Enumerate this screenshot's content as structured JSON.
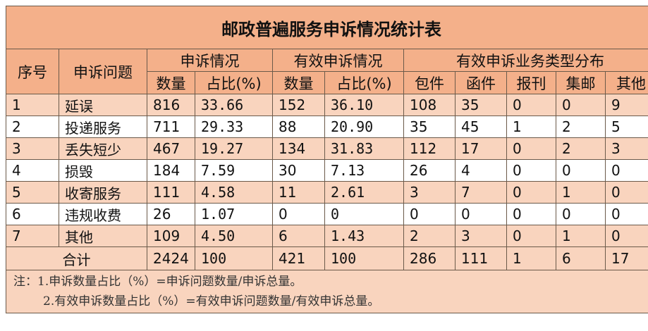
{
  "title": "邮政普遍服务申诉情况统计表",
  "headers": {
    "seq": "序号",
    "issue": "申诉问题",
    "complaints": "申诉情况",
    "valid": "有效申诉情况",
    "distribution": "有效申诉业务类型分布",
    "count": "数量",
    "ratio": "占比(%)",
    "valid_count": "数量",
    "valid_ratio": "占比(%)",
    "parcel": "包件",
    "letter": "函件",
    "newspaper": "报刊",
    "stamp": "集邮",
    "other": "其他"
  },
  "rows": [
    {
      "seq": "1",
      "issue": "延误",
      "count": "816",
      "ratio": "33.66",
      "valid_count": "152",
      "valid_ratio": "36.10",
      "parcel": "108",
      "letter": "35",
      "newspaper": "0",
      "stamp": "0",
      "other": "9"
    },
    {
      "seq": "2",
      "issue": "投递服务",
      "count": "711",
      "ratio": "29.33",
      "valid_count": "88",
      "valid_ratio": "20.90",
      "parcel": "35",
      "letter": "45",
      "newspaper": "1",
      "stamp": "2",
      "other": "5"
    },
    {
      "seq": "3",
      "issue": "丢失短少",
      "count": "467",
      "ratio": "19.27",
      "valid_count": "134",
      "valid_ratio": "31.83",
      "parcel": "112",
      "letter": "17",
      "newspaper": "0",
      "stamp": "2",
      "other": "3"
    },
    {
      "seq": "4",
      "issue": "损毁",
      "count": "184",
      "ratio": "7.59",
      "valid_count": "30",
      "valid_ratio": "7.13",
      "parcel": "26",
      "letter": "4",
      "newspaper": "0",
      "stamp": "0",
      "other": "0"
    },
    {
      "seq": "5",
      "issue": "收寄服务",
      "count": "111",
      "ratio": "4.58",
      "valid_count": "11",
      "valid_ratio": "2.61",
      "parcel": "3",
      "letter": "7",
      "newspaper": "0",
      "stamp": "1",
      "other": "0"
    },
    {
      "seq": "6",
      "issue": "违规收费",
      "count": "26",
      "ratio": "1.07",
      "valid_count": "0",
      "valid_ratio": "0",
      "parcel": "0",
      "letter": "0",
      "newspaper": "0",
      "stamp": "0",
      "other": "0"
    },
    {
      "seq": "7",
      "issue": "其他",
      "count": "109",
      "ratio": "4.50",
      "valid_count": "6",
      "valid_ratio": "1.43",
      "parcel": "2",
      "letter": "3",
      "newspaper": "0",
      "stamp": "1",
      "other": "0"
    }
  ],
  "total": {
    "label": "合计",
    "count": "2424",
    "ratio": "100",
    "valid_count": "421",
    "valid_ratio": "100",
    "parcel": "286",
    "letter": "111",
    "newspaper": "1",
    "stamp": "6",
    "other": "17"
  },
  "notes": {
    "line1": "注：1.申诉数量占比（%）=申诉问题数量/申诉总量。",
    "line2": "2.有效申诉数量占比（%）=有效申诉问题数量/有效申诉总量。"
  },
  "colors": {
    "header_bg": "#f4b08a",
    "odd_row_bg": "#f9d4be",
    "even_row_bg": "#ffffff",
    "border": "#6b5a4a"
  }
}
